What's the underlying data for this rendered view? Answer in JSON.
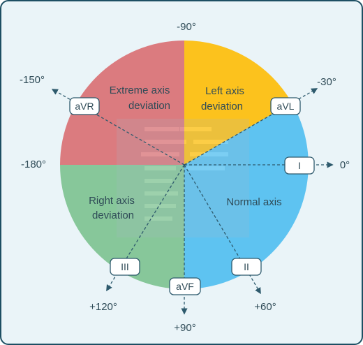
{
  "colors": {
    "background": "#eaf4f8",
    "border": "#1d4f63",
    "extreme": "#db7b7f",
    "left": "#fcc21d",
    "normal": "#5ec3f1",
    "right": "#87c79a",
    "axis_line": "#2e5a6d",
    "text": "#2f4b57"
  },
  "regions": {
    "extreme": {
      "line1": "Extreme axis",
      "line2": "deviation"
    },
    "left": {
      "line1": "Left axis",
      "line2": "deviation"
    },
    "normal": {
      "line1": "Normal axis"
    },
    "right": {
      "line1": "Right axis",
      "line2": "deviation"
    }
  },
  "degrees": {
    "d_neg90": "-90°",
    "d_neg150": "-150°",
    "d_neg30": "-30°",
    "d_neg180": "-180°",
    "d_0": "0°",
    "d_120": "+120°",
    "d_90": "+90°",
    "d_60": "+60°"
  },
  "leads": {
    "aVR": "aVR",
    "aVL": "aVL",
    "I": "I",
    "III": "III",
    "aVF": "aVF",
    "II": "II"
  }
}
